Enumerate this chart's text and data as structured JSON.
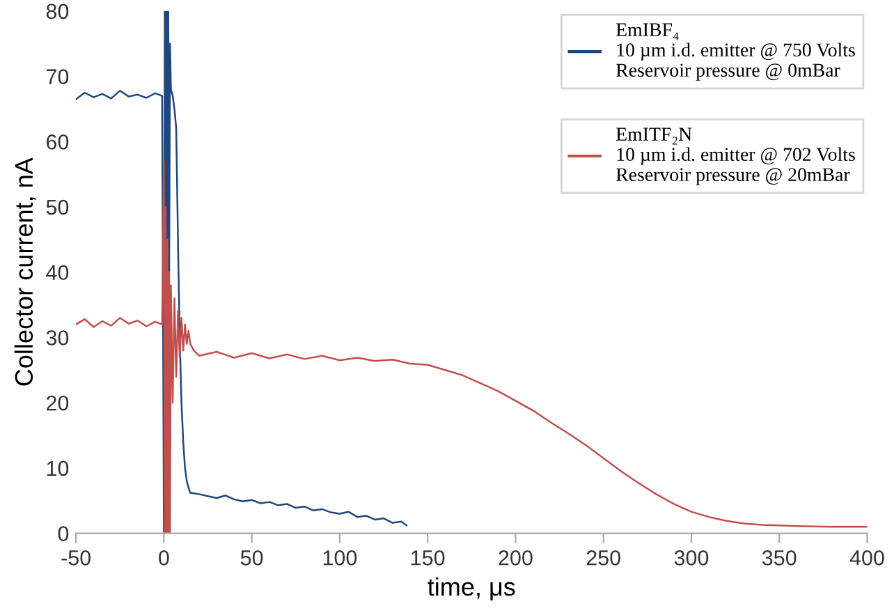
{
  "chart_data": {
    "type": "line",
    "xlabel": "time, μs",
    "ylabel": "Collector current, nA",
    "xlim": [
      -50,
      400
    ],
    "xticks": [
      -50,
      0,
      50,
      100,
      150,
      200,
      250,
      300,
      350,
      400
    ],
    "ylim": [
      0,
      80
    ],
    "yticks": [
      0,
      10,
      20,
      30,
      40,
      50,
      60,
      70,
      80
    ],
    "grid": false,
    "legend": "top right",
    "series": [
      {
        "name": "EmIBF₄\n10 µm i.d. emitter @ 750 Volts\nReservoir pressure @ 0mBar",
        "color": "#1f497d",
        "x": [
          -50,
          -45,
          -40,
          -35,
          -30,
          -25,
          -20,
          -15,
          -10,
          -5,
          -1,
          0,
          0.5,
          1,
          1.5,
          2,
          2.5,
          3,
          3.5,
          4,
          5,
          6,
          7,
          8,
          9,
          10,
          11,
          12,
          13,
          14,
          15,
          20,
          25,
          30,
          35,
          40,
          45,
          50,
          55,
          60,
          65,
          70,
          75,
          80,
          85,
          90,
          95,
          100,
          105,
          110,
          115,
          120,
          125,
          130,
          135,
          138
        ],
        "values": [
          66.5,
          67.5,
          66.8,
          67.3,
          66.6,
          67.8,
          66.9,
          67.2,
          66.7,
          67.4,
          67,
          0,
          80,
          0,
          80,
          10,
          80,
          40,
          75,
          68,
          67,
          65,
          62,
          45,
          30,
          20,
          14,
          10,
          8,
          7,
          6.2,
          6,
          5.7,
          5.4,
          5.8,
          5.2,
          4.9,
          5.1,
          4.6,
          4.8,
          4.3,
          4.5,
          3.9,
          4.1,
          3.5,
          3.7,
          3.2,
          3.0,
          3.3,
          2.5,
          2.7,
          2.1,
          2.3,
          1.6,
          1.8,
          1.2
        ]
      },
      {
        "name": "EmITF₂N\n10 µm i.d. emitter @ 702 Volts\nReservoir pressure @ 20mBar",
        "color": "#c0504d",
        "x": [
          -50,
          -45,
          -40,
          -35,
          -30,
          -25,
          -20,
          -15,
          -10,
          -5,
          -1,
          0,
          0.5,
          1,
          1.5,
          2,
          2.5,
          3,
          3.5,
          4,
          5,
          6,
          7,
          8,
          9,
          10,
          11,
          12,
          13,
          14,
          15,
          17,
          20,
          30,
          40,
          50,
          60,
          70,
          80,
          90,
          100,
          110,
          120,
          130,
          140,
          150,
          160,
          170,
          180,
          190,
          200,
          210,
          220,
          230,
          240,
          250,
          260,
          270,
          280,
          290,
          300,
          310,
          320,
          330,
          340,
          350,
          360,
          380,
          400
        ],
        "values": [
          32,
          32.8,
          31.6,
          32.5,
          31.8,
          33,
          32.1,
          32.6,
          31.7,
          32.4,
          32,
          57,
          0,
          50,
          0,
          45,
          0,
          40,
          0,
          38,
          20,
          36,
          24,
          34,
          27,
          33,
          28,
          32,
          29,
          31,
          29,
          28,
          27.2,
          27.8,
          26.9,
          27.6,
          26.8,
          27.4,
          26.7,
          27.2,
          26.5,
          26.9,
          26.4,
          26.6,
          26,
          25.8,
          25,
          24.2,
          23,
          21.8,
          20.3,
          18.8,
          17,
          15.3,
          13.5,
          11.5,
          9.5,
          7.7,
          6,
          4.5,
          3.3,
          2.5,
          1.9,
          1.5,
          1.3,
          1.2,
          1.1,
          1.0,
          1.0
        ]
      }
    ]
  }
}
